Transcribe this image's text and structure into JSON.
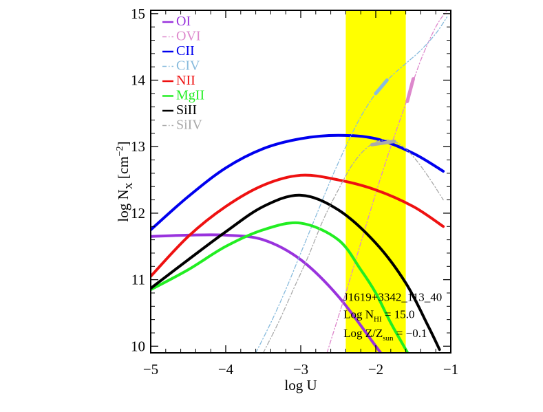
{
  "chart_data": {
    "type": "line",
    "title": "",
    "xlabel": "log U",
    "ylabel": {
      "base": "log N",
      "sub": "X",
      "unit_open": " [cm",
      "sup": "−2",
      "unit_close": "]"
    },
    "xlim": [
      -5,
      -1
    ],
    "ylim": [
      9.9,
      15.05
    ],
    "x_ticks": [
      {
        "value": -5,
        "label": "−5"
      },
      {
        "value": -4,
        "label": "−4"
      },
      {
        "value": -3,
        "label": "−3"
      },
      {
        "value": -2,
        "label": "−2"
      },
      {
        "value": -1,
        "label": "−1"
      }
    ],
    "y_ticks": [
      {
        "value": 10,
        "label": "10"
      },
      {
        "value": 11,
        "label": "11"
      },
      {
        "value": 12,
        "label": "12"
      },
      {
        "value": 13,
        "label": "13"
      },
      {
        "value": 14,
        "label": "14"
      },
      {
        "value": 15,
        "label": "15"
      }
    ],
    "grid": false,
    "legend_position": "top-left",
    "shaded_band": {
      "x_range": [
        -2.4,
        -1.6
      ],
      "color": "#ffff00"
    },
    "series": [
      {
        "name": "OI",
        "color": "#9933dd",
        "style": "solid",
        "width": 4,
        "x": [
          -5.0,
          -4.5,
          -4.0,
          -3.5,
          -3.0,
          -2.5,
          -2.0,
          -1.9
        ],
        "y": [
          11.65,
          11.67,
          11.67,
          11.6,
          11.3,
          10.75,
          10.0,
          9.85
        ]
      },
      {
        "name": "OVI",
        "color": "#dd88cc",
        "style": "dashdot",
        "width": 1.3,
        "x": [
          -2.65,
          -2.4,
          -2.2,
          -2.0,
          -1.8,
          -1.6,
          -1.4,
          -1.2,
          -1.05
        ],
        "y": [
          9.9,
          10.8,
          11.55,
          12.3,
          13.0,
          13.65,
          14.3,
          14.8,
          15.05
        ]
      },
      {
        "name": "CII",
        "color": "#0000ee",
        "style": "solid",
        "width": 4,
        "x": [
          -5.0,
          -4.5,
          -4.0,
          -3.5,
          -3.0,
          -2.5,
          -2.0,
          -1.5,
          -1.1
        ],
        "y": [
          11.75,
          12.25,
          12.68,
          12.97,
          13.12,
          13.17,
          13.12,
          12.9,
          12.63
        ]
      },
      {
        "name": "CIV",
        "color": "#88bbdd",
        "style": "dashdot",
        "width": 1.3,
        "x": [
          -3.6,
          -3.4,
          -3.2,
          -3.0,
          -2.8,
          -2.6,
          -2.4,
          -2.2,
          -2.0,
          -1.8,
          -1.6,
          -1.4,
          -1.2,
          -1.05
        ],
        "y": [
          9.9,
          10.35,
          10.85,
          11.4,
          11.95,
          12.5,
          13.0,
          13.45,
          13.8,
          14.05,
          14.25,
          14.45,
          14.7,
          14.95
        ]
      },
      {
        "name": "NII",
        "color": "#ee1111",
        "style": "solid",
        "width": 4,
        "x": [
          -5.0,
          -4.5,
          -4.0,
          -3.5,
          -3.0,
          -2.5,
          -2.0,
          -1.5,
          -1.1
        ],
        "y": [
          11.05,
          11.65,
          12.1,
          12.42,
          12.57,
          12.5,
          12.35,
          12.1,
          11.8
        ]
      },
      {
        "name": "MgII",
        "color": "#22ee22",
        "style": "solid",
        "width": 4,
        "x": [
          -5.0,
          -4.5,
          -4.0,
          -3.5,
          -3.0,
          -2.5,
          -2.2,
          -2.0,
          -1.8,
          -1.6,
          -1.55
        ],
        "y": [
          10.85,
          11.15,
          11.5,
          11.75,
          11.85,
          11.6,
          11.15,
          10.8,
          10.35,
          9.95,
          9.85
        ]
      },
      {
        "name": "SiII",
        "color": "#000000",
        "style": "solid",
        "width": 4,
        "x": [
          -5.0,
          -4.5,
          -4.0,
          -3.5,
          -3.0,
          -2.5,
          -2.0,
          -1.6,
          -1.3,
          -1.15
        ],
        "y": [
          10.87,
          11.3,
          11.72,
          12.1,
          12.27,
          12.05,
          11.55,
          10.95,
          10.3,
          9.95
        ]
      },
      {
        "name": "SiIV",
        "color": "#aaaaaa",
        "style": "dashdot",
        "width": 1.3,
        "x": [
          -3.5,
          -3.3,
          -3.1,
          -2.9,
          -2.7,
          -2.5,
          -2.3,
          -2.1,
          -1.9,
          -1.7,
          -1.5,
          -1.3,
          -1.1
        ],
        "y": [
          9.9,
          10.35,
          10.85,
          11.35,
          11.9,
          12.35,
          12.75,
          13.0,
          13.1,
          13.05,
          12.85,
          12.55,
          12.2
        ]
      }
    ],
    "measurement_segments": [
      {
        "series": "CIV",
        "color": "#88bbdd",
        "x": [
          -2.0,
          -1.85
        ],
        "y": [
          13.8,
          14.0
        ]
      },
      {
        "series": "OVI",
        "color": "#dd88cc",
        "x": [
          -1.58,
          -1.5
        ],
        "y": [
          13.68,
          14.02
        ]
      },
      {
        "series": "SiIV",
        "color": "#aaaaaa",
        "x": [
          -2.05,
          -1.75
        ],
        "y": [
          13.03,
          13.08
        ]
      }
    ],
    "annotations": [
      {
        "name": "sightline",
        "x": -2.43,
        "y": 10.68,
        "parts": [
          {
            "t": "J1619+3342_113_40"
          }
        ]
      },
      {
        "name": "nhi",
        "x": -2.43,
        "y": 10.42,
        "parts": [
          {
            "t": "Log N"
          },
          {
            "t": "HI",
            "sub": true
          },
          {
            "t": " = 15.0"
          }
        ]
      },
      {
        "name": "metallicity",
        "x": -2.43,
        "y": 10.14,
        "parts": [
          {
            "t": "Log Z/Z"
          },
          {
            "t": "sun",
            "sub": true
          },
          {
            "t": " = −0.1"
          }
        ]
      }
    ]
  }
}
